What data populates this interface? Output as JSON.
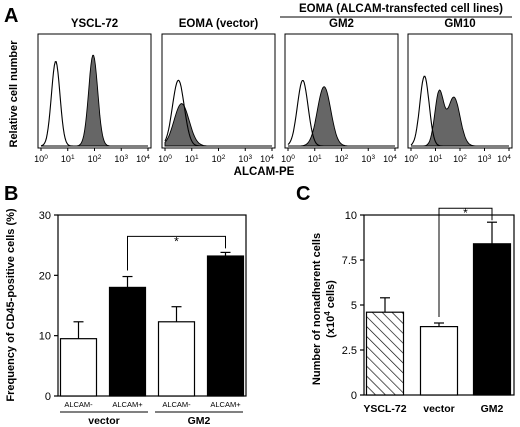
{
  "panel_letters": {
    "a": "A",
    "b": "B",
    "c": "C"
  },
  "colors": {
    "ink": "#000000",
    "histogram_fill": "#666666",
    "bar_black": "#000000",
    "bar_white": "#ffffff"
  },
  "chart_data": [
    {
      "type": "histogram",
      "panel": "A",
      "group_label": "EOMA (ALCAM-transfected cell lines)",
      "ylabel": "Relative cell number",
      "xlabel": "ALCAM-PE",
      "x_scale": "log",
      "xlim": [
        1,
        10000
      ],
      "x_ticks": [
        {
          "base": "10",
          "exp": "0"
        },
        {
          "base": "10",
          "exp": "1"
        },
        {
          "base": "10",
          "exp": "2"
        },
        {
          "base": "10",
          "exp": "3"
        },
        {
          "base": "10",
          "exp": "4"
        }
      ],
      "histograms": [
        {
          "title": "YSCL-72",
          "control_peaks": [
            {
              "log_x": 0.55,
              "h": 0.8,
              "w": 0.16
            }
          ],
          "stained_peaks": [
            {
              "log_x": 1.95,
              "h": 0.86,
              "w": 0.17
            }
          ]
        },
        {
          "title": "EOMA (vector)",
          "control_peaks": [
            {
              "log_x": 0.5,
              "h": 0.62,
              "w": 0.22
            }
          ],
          "stained_peaks": [
            {
              "log_x": 0.62,
              "h": 0.4,
              "w": 0.28
            }
          ]
        },
        {
          "title": "GM2",
          "control_peaks": [
            {
              "log_x": 0.55,
              "h": 0.62,
              "w": 0.2
            }
          ],
          "stained_peaks": [
            {
              "log_x": 1.35,
              "h": 0.56,
              "w": 0.25
            }
          ]
        },
        {
          "title": "GM10",
          "control_peaks": [
            {
              "log_x": 0.55,
              "h": 0.66,
              "w": 0.19
            }
          ],
          "stained_peaks": [
            {
              "log_x": 1.15,
              "h": 0.5,
              "w": 0.18
            },
            {
              "log_x": 1.75,
              "h": 0.46,
              "w": 0.25
            }
          ]
        }
      ]
    },
    {
      "type": "bar",
      "panel": "B",
      "ylabel": "Frequency of CD45-positive cells (%)",
      "ylim": [
        0,
        30
      ],
      "y_ticks": [
        "0",
        "10",
        "20",
        "30"
      ],
      "categories": [
        "ALCAM-",
        "ALCAM+",
        "ALCAM-",
        "ALCAM+"
      ],
      "groups": [
        "vector",
        "GM2"
      ],
      "values": [
        9.5,
        18.0,
        12.3,
        23.2
      ],
      "errors": [
        2.8,
        1.8,
        2.5,
        0.6
      ],
      "fills": [
        "white",
        "black",
        "white",
        "black"
      ],
      "significance": {
        "label": "*",
        "between": [
          1,
          3
        ]
      }
    },
    {
      "type": "bar",
      "panel": "C",
      "ylabel": "Number of nonadherent cells",
      "ylabel2_prefix": "(x10",
      "ylabel2_exp": "4",
      "ylabel2_suffix": " cells)",
      "ylim": [
        0,
        10
      ],
      "y_ticks": [
        "0",
        "2.5",
        "5",
        "7.5",
        "10"
      ],
      "categories": [
        "YSCL-72",
        "vector",
        "GM2"
      ],
      "values": [
        4.6,
        3.8,
        8.4
      ],
      "errors": [
        0.8,
        0.2,
        1.2
      ],
      "fills": [
        "hatched",
        "white",
        "black"
      ],
      "significance": {
        "label": "*",
        "between": [
          1,
          2
        ]
      }
    }
  ]
}
